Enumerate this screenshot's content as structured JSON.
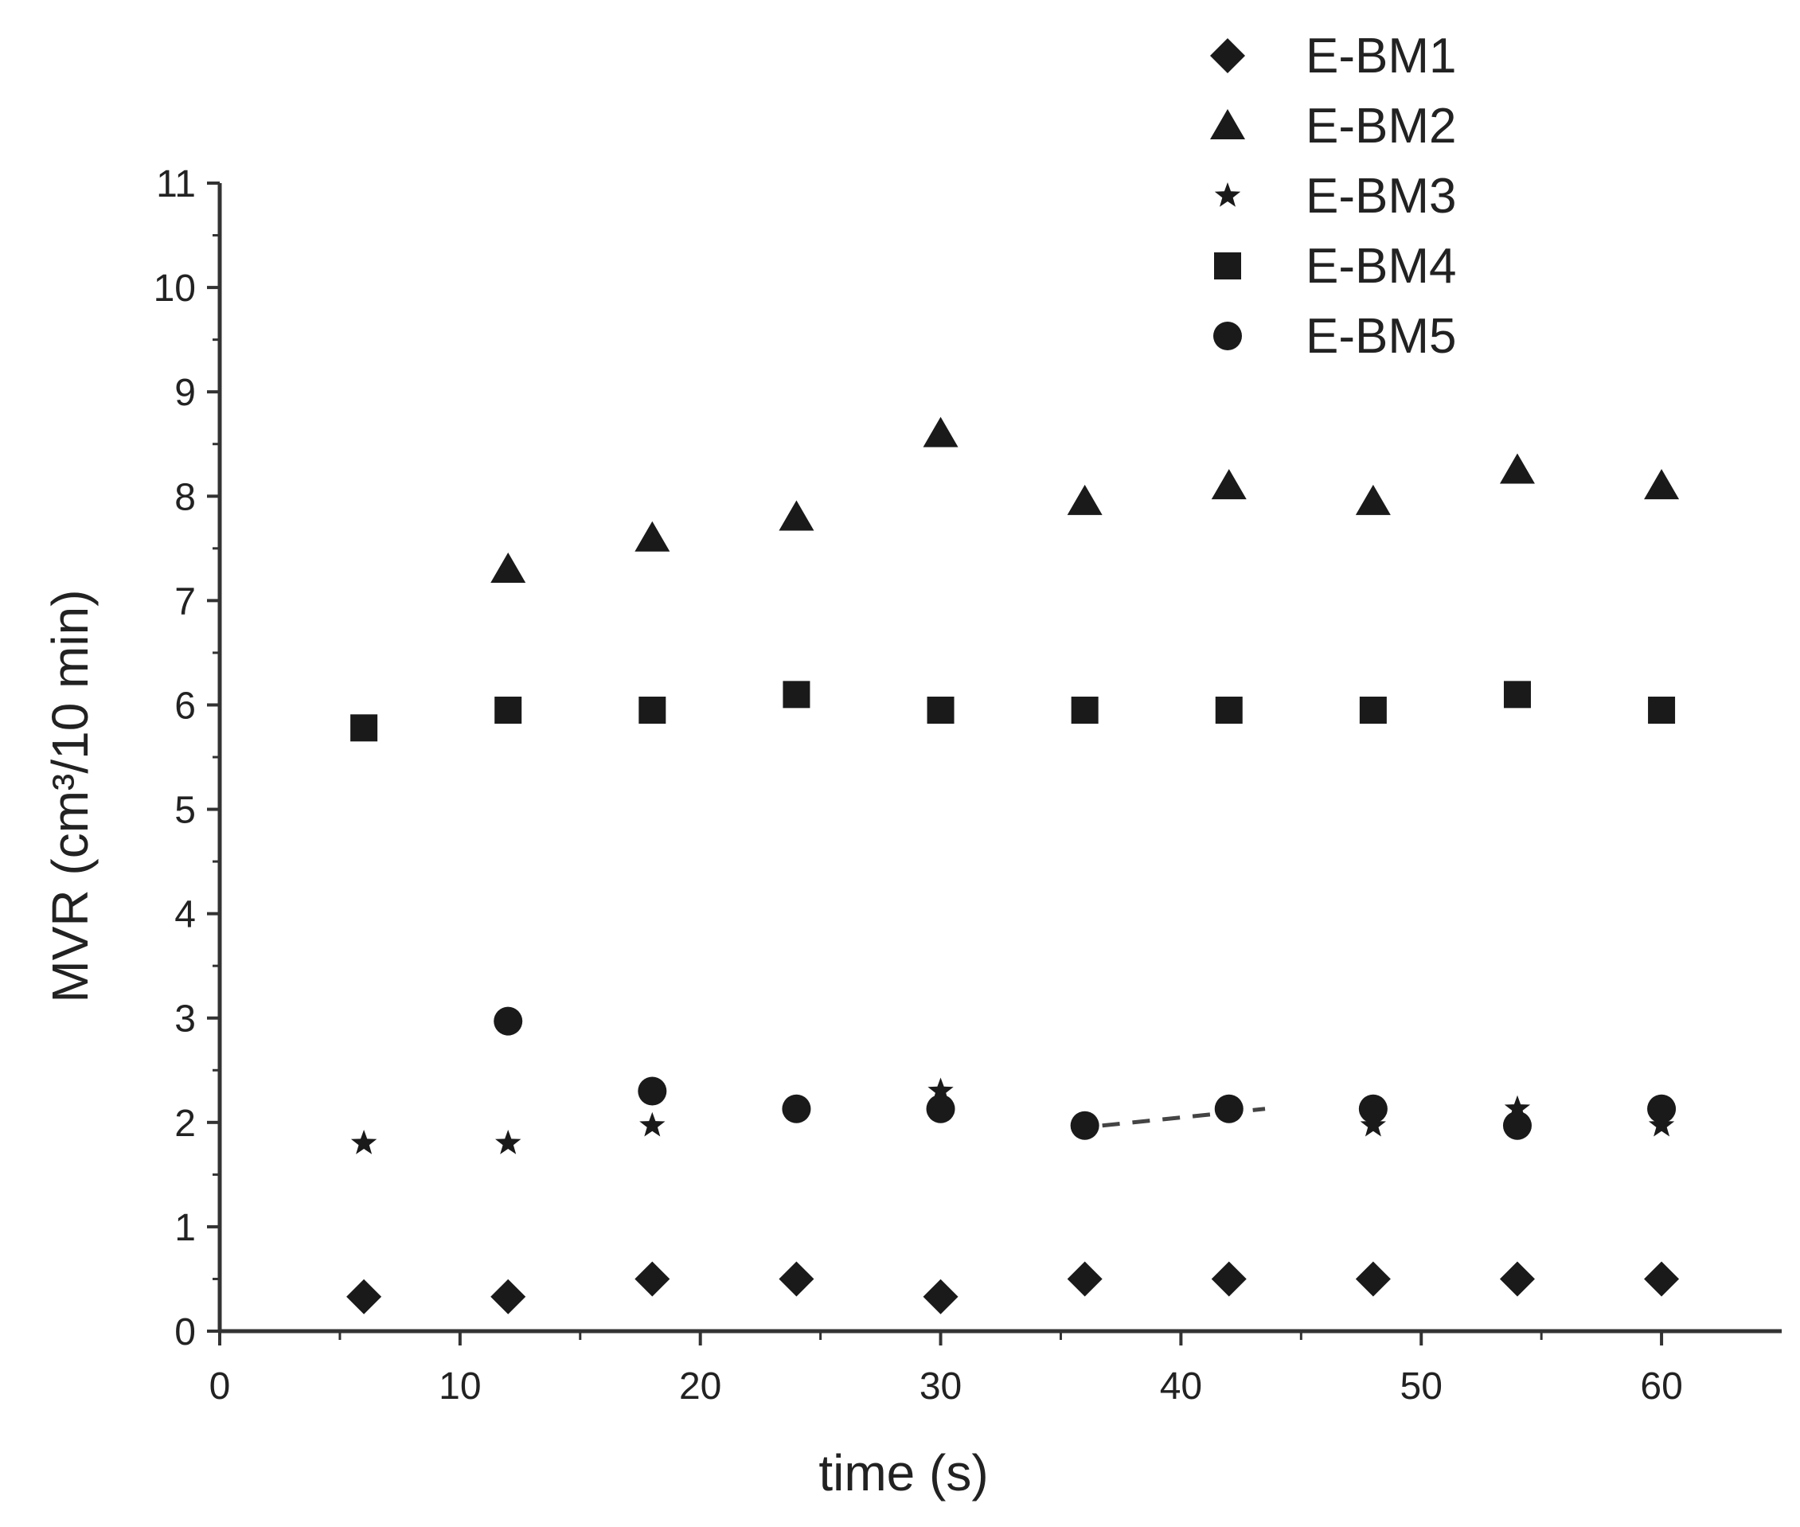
{
  "chart_data": {
    "type": "scatter",
    "title": "",
    "xlabel": "time (s)",
    "ylabel": "MVR (cm³/10 min)",
    "xlim": [
      0,
      65
    ],
    "ylim": [
      0,
      11
    ],
    "xticks": [
      0,
      10,
      20,
      30,
      40,
      50,
      60
    ],
    "xtick_labels": [
      "0",
      "10",
      "20",
      "30",
      "40",
      "50",
      "60"
    ],
    "yticks": [
      0,
      1,
      2,
      3,
      4,
      5,
      6,
      7,
      8,
      9,
      10,
      11
    ],
    "ytick_labels": [
      "0",
      "1",
      "2",
      "3",
      "4",
      "5",
      "6",
      "7",
      "8",
      "9",
      "10",
      "11"
    ],
    "grid": false,
    "legend_position": "top-right",
    "x": [
      6,
      12,
      18,
      24,
      30,
      36,
      42,
      48,
      54,
      60
    ],
    "series": [
      {
        "name": "E-BM1",
        "marker": "diamond",
        "values": [
          0.33,
          0.33,
          0.5,
          0.5,
          0.33,
          0.5,
          0.5,
          0.5,
          0.5,
          0.5
        ]
      },
      {
        "name": "E-BM2",
        "marker": "triangle",
        "values": [
          null,
          7.3,
          7.6,
          7.8,
          8.6,
          7.95,
          8.1,
          7.95,
          8.25,
          8.1
        ]
      },
      {
        "name": "E-BM3",
        "marker": "star",
        "values": [
          1.8,
          1.8,
          1.97,
          2.13,
          2.3,
          1.97,
          2.13,
          1.97,
          2.13,
          1.97
        ]
      },
      {
        "name": "E-BM4",
        "marker": "square",
        "values": [
          5.78,
          5.95,
          5.95,
          6.1,
          5.95,
          5.95,
          5.95,
          5.95,
          6.1,
          5.95
        ]
      },
      {
        "name": "E-BM5",
        "marker": "circle",
        "values": [
          null,
          2.97,
          2.3,
          2.13,
          2.13,
          1.97,
          2.13,
          2.13,
          1.97,
          2.13
        ]
      }
    ],
    "colors": {
      "marker": "#1a1a1a",
      "axis": "#333333",
      "dashed_line": "#444444"
    }
  }
}
